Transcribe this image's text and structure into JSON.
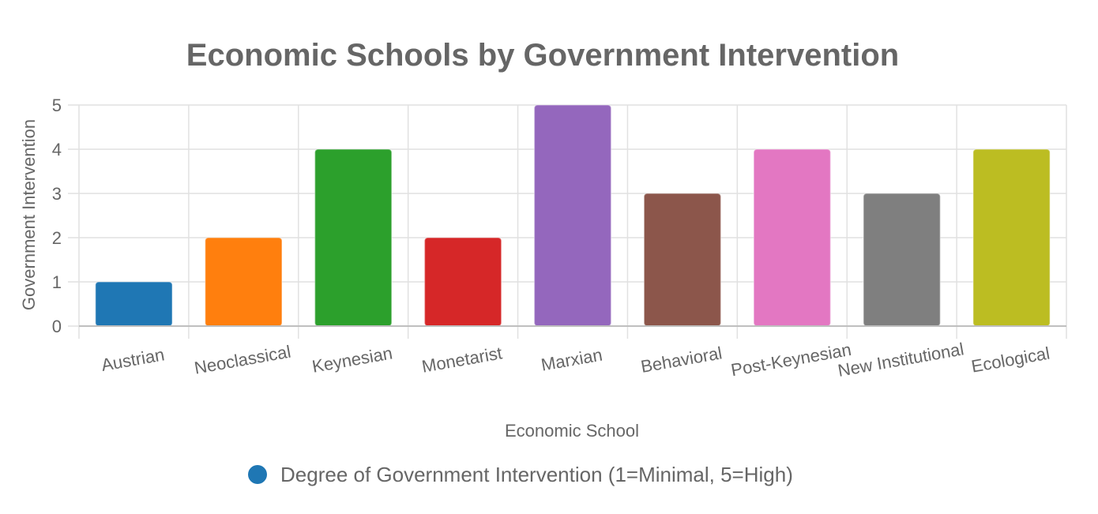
{
  "chart_data": {
    "type": "bar",
    "title": "Economic Schools by Government Intervention",
    "xlabel": "Economic School",
    "ylabel": "Government Intervention",
    "categories": [
      "Austrian",
      "Neoclassical",
      "Keynesian",
      "Monetarist",
      "Marxian",
      "Behavioral",
      "Post-Keynesian",
      "New Institutional",
      "Ecological"
    ],
    "series": [
      {
        "name": "Degree of Government Intervention (1=Minimal, 5=High)",
        "values": [
          1,
          2,
          4,
          2,
          5,
          3,
          4,
          3,
          4
        ]
      }
    ],
    "bar_colors": [
      "#1f77b4",
      "#ff7f0e",
      "#2ca02c",
      "#d62728",
      "#9467bd",
      "#8c564b",
      "#e377c2",
      "#7f7f7f",
      "#bcbd22"
    ],
    "legend_color": "#1f77b4",
    "ylim": [
      0,
      5
    ],
    "yticks": [
      0,
      1,
      2,
      3,
      4,
      5
    ],
    "grid": true,
    "legend_position": "bottom"
  }
}
